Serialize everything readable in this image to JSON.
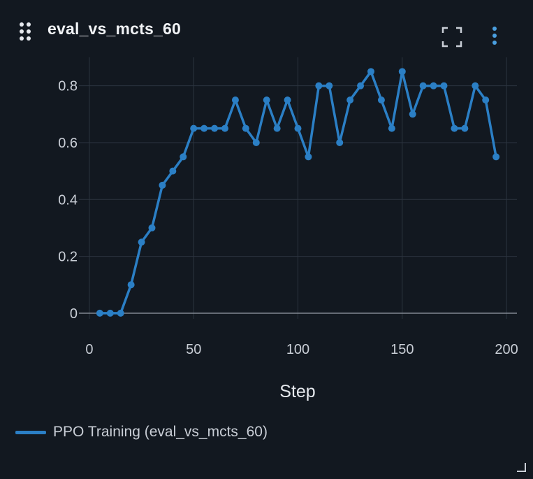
{
  "header": {
    "title": "eval_vs_mcts_60",
    "drag_icon": "drag-handle-icon",
    "fullscreen_icon": "fullscreen-icon",
    "menu_icon": "more-vertical-icon"
  },
  "colors": {
    "background": "#121820",
    "series": "#2b7fc5",
    "grid": "#2c343f",
    "axis_text": "#c9ced6"
  },
  "chart_data": {
    "type": "line",
    "xlabel": "Step",
    "ylabel": "",
    "xlim": [
      -5,
      205
    ],
    "ylim": [
      -0.02,
      0.9
    ],
    "xticks": [
      0,
      50,
      100,
      150,
      200
    ],
    "yticks": [
      0,
      0.2,
      0.4,
      0.6,
      0.8
    ],
    "xtick_labels": [
      "0",
      "50",
      "100",
      "150",
      "200"
    ],
    "ytick_labels": [
      "0",
      "0.2",
      "0.4",
      "0.6",
      "0.8"
    ],
    "grid": true,
    "legend_position": "bottom-left",
    "series": [
      {
        "name": "PPO Training (eval_vs_mcts_60)",
        "x": [
          5,
          10,
          15,
          20,
          25,
          30,
          35,
          40,
          45,
          50,
          55,
          60,
          65,
          70,
          75,
          80,
          85,
          90,
          95,
          100,
          105,
          110,
          115,
          120,
          125,
          130,
          135,
          140,
          145,
          150,
          155,
          160,
          165,
          170,
          175,
          180,
          185,
          190,
          195
        ],
        "y": [
          0,
          0,
          0,
          0.1,
          0.25,
          0.3,
          0.45,
          0.5,
          0.55,
          0.65,
          0.65,
          0.65,
          0.65,
          0.75,
          0.65,
          0.6,
          0.75,
          0.65,
          0.75,
          0.65,
          0.55,
          0.8,
          0.8,
          0.6,
          0.75,
          0.8,
          0.85,
          0.75,
          0.65,
          0.85,
          0.7,
          0.8,
          0.8,
          0.8,
          0.65,
          0.65,
          0.8,
          0.75,
          0.55
        ]
      }
    ]
  }
}
